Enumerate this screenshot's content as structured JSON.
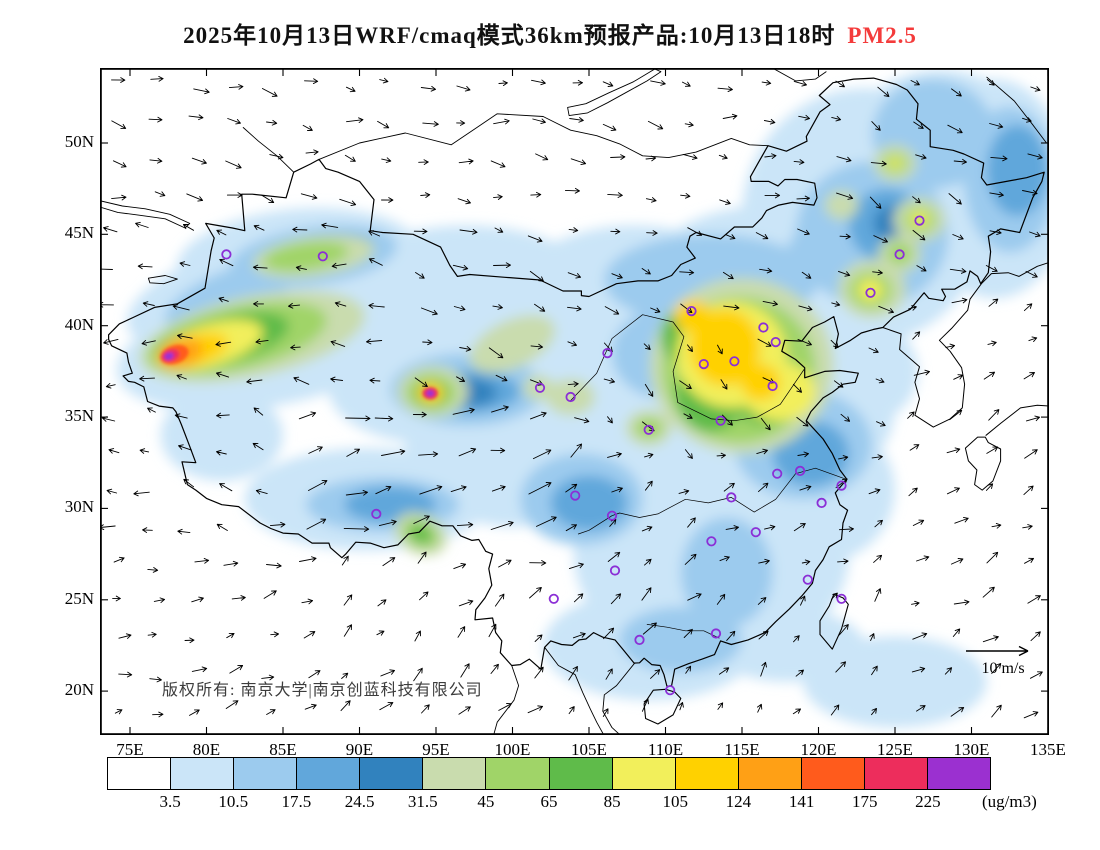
{
  "title": {
    "main": "2025年10月13日WRF/cmaq模式36km预报产品:10月13日18时",
    "highlight": "PM2.5",
    "highlight_color": "#f43b3b"
  },
  "map": {
    "copyright": "版权所有: 南京大学|南京创蓝科技有限公司",
    "wind_scale_label": "10 m/s"
  },
  "chart_data": {
    "type": "heatmap",
    "subtype": "filled-contour PM2.5 forecast map with wind vectors and station markers",
    "title": "2025年10月13日WRF/cmaq模式36km预报产品:10月13日18时 PM2.5",
    "variable": "PM2.5",
    "model": "WRF/cmaq",
    "grid_resolution": "36km",
    "forecast_date": "2025年10月13日",
    "valid_time": "10月13日18时",
    "wind_reference_speed": "10 m/s",
    "lon_range": [
      73.0,
      135.2
    ],
    "lat_range": [
      17.6,
      54.1
    ],
    "lon_ticks": [
      {
        "label": "75E",
        "lon": 75
      },
      {
        "label": "80E",
        "lon": 80
      },
      {
        "label": "85E",
        "lon": 85
      },
      {
        "label": "90E",
        "lon": 90
      },
      {
        "label": "95E",
        "lon": 95
      },
      {
        "label": "100E",
        "lon": 100
      },
      {
        "label": "105E",
        "lon": 105
      },
      {
        "label": "110E",
        "lon": 110
      },
      {
        "label": "115E",
        "lon": 115
      },
      {
        "label": "120E",
        "lon": 120
      },
      {
        "label": "125E",
        "lon": 125
      },
      {
        "label": "130E",
        "lon": 130
      },
      {
        "label": "135E",
        "lon": 135
      }
    ],
    "lat_ticks": [
      {
        "label": "50N",
        "lat": 50
      },
      {
        "label": "45N",
        "lat": 45
      },
      {
        "label": "40N",
        "lat": 40
      },
      {
        "label": "35N",
        "lat": 35
      },
      {
        "label": "30N",
        "lat": 30
      },
      {
        "label": "25N",
        "lat": 25
      },
      {
        "label": "20N",
        "lat": 20
      }
    ],
    "colorbar": {
      "unit": "(ug/m3)",
      "tick_labels": [
        "3.5",
        "10.5",
        "17.5",
        "24.5",
        "31.5",
        "45",
        "65",
        "85",
        "105",
        "124",
        "141",
        "175",
        "225"
      ],
      "colors": [
        "#ffffff",
        "#cbe5f8",
        "#9ccbee",
        "#61a7db",
        "#3182be",
        "#c9dcae",
        "#a0d468",
        "#5fbb4a",
        "#f2ef5b",
        "#ffd100",
        "#ffa015",
        "#ff5b1c",
        "#ed2d5c",
        "#9b30d0"
      ]
    },
    "station_marker_color": "#8b2fd6",
    "pm25_blobs": [
      [
        86,
        43.6,
        8,
        2.8,
        -5,
        1,
        0
      ],
      [
        80.5,
        41.6,
        6,
        2.2,
        -20,
        1,
        0
      ],
      [
        84,
        38.8,
        10,
        3.2,
        -10,
        1,
        0
      ],
      [
        97,
        41.5,
        9,
        4,
        0,
        1,
        0
      ],
      [
        108,
        40.5,
        9,
        5,
        0,
        1,
        0
      ],
      [
        116,
        41.5,
        8,
        5,
        0,
        1,
        0
      ],
      [
        123,
        46,
        8,
        7,
        0,
        1,
        0
      ],
      [
        128,
        50,
        6,
        4,
        0,
        1,
        0
      ],
      [
        117,
        35.5,
        8,
        5,
        0,
        1,
        0
      ],
      [
        108,
        32.5,
        8,
        5,
        0,
        1,
        0
      ],
      [
        100,
        33.5,
        7,
        4.5,
        0,
        1,
        0
      ],
      [
        113,
        27.5,
        9,
        6,
        0,
        1,
        0
      ],
      [
        120,
        31,
        5,
        4,
        0,
        1,
        0
      ],
      [
        95,
        36.5,
        7,
        3,
        0,
        1,
        0
      ],
      [
        90.5,
        30.5,
        8,
        2.8,
        0,
        1,
        0
      ],
      [
        109,
        22.5,
        7,
        3,
        0,
        1,
        0
      ],
      [
        131.5,
        47.5,
        5,
        6,
        0,
        1,
        0
      ],
      [
        122.5,
        37.5,
        4,
        3,
        0,
        1,
        0
      ],
      [
        81,
        34,
        4,
        2.5,
        0,
        1,
        0
      ],
      [
        125,
        20.5,
        6,
        2.5,
        0,
        1,
        0
      ],
      [
        118,
        22.5,
        5,
        2,
        0,
        1,
        0
      ],
      [
        87,
        43.8,
        5.5,
        1.6,
        -8,
        2,
        0
      ],
      [
        81.5,
        41.6,
        4.5,
        1.4,
        -22,
        2,
        0
      ],
      [
        113,
        42.5,
        7,
        2.5,
        0,
        2,
        0
      ],
      [
        123.5,
        45,
        5,
        4,
        0,
        2,
        0
      ],
      [
        127.5,
        50.5,
        4,
        3,
        0,
        2,
        0
      ],
      [
        119,
        33.5,
        4.5,
        3,
        0,
        2,
        0
      ],
      [
        104.5,
        30.5,
        4,
        2.5,
        0,
        2,
        0
      ],
      [
        97,
        36.5,
        5,
        2,
        0,
        2,
        0
      ],
      [
        91.5,
        30.2,
        5,
        1.5,
        0,
        2,
        0
      ],
      [
        111,
        22.8,
        4,
        1.8,
        0,
        2,
        0
      ],
      [
        114,
        26.5,
        3,
        3,
        0,
        2,
        0
      ],
      [
        132.5,
        48,
        3,
        4,
        0,
        2,
        0
      ],
      [
        121,
        44,
        3,
        2,
        0,
        2,
        0
      ],
      [
        110,
        38.5,
        3.5,
        2.5,
        0,
        2,
        0
      ],
      [
        87.5,
        44,
        3.5,
        1,
        -8,
        3,
        0
      ],
      [
        124.5,
        45.5,
        2.5,
        2,
        0,
        3,
        0
      ],
      [
        97,
        36.4,
        3.5,
        1.2,
        0,
        3,
        0
      ],
      [
        105,
        30.3,
        2.5,
        1.5,
        0,
        3,
        0
      ],
      [
        119.5,
        33,
        2.5,
        1.8,
        0,
        3,
        0
      ],
      [
        92,
        30.2,
        3,
        1,
        0,
        3,
        0
      ],
      [
        133,
        48.5,
        2,
        2.5,
        0,
        3,
        0
      ],
      [
        124.8,
        45.6,
        1.2,
        1,
        0,
        4,
        0
      ],
      [
        97,
        36.35,
        2,
        0.8,
        0,
        4,
        0
      ],
      [
        88,
        44,
        1.8,
        0.6,
        -8,
        4,
        0
      ],
      [
        83,
        39.4,
        7.5,
        2.2,
        -12,
        5,
        0
      ],
      [
        115,
        37.8,
        6,
        4.8,
        0,
        5,
        0
      ],
      [
        87,
        43.8,
        4,
        1.1,
        -8,
        5,
        0
      ],
      [
        123.5,
        42,
        2.2,
        1.6,
        0,
        5,
        0
      ],
      [
        126.6,
        45.8,
        1.7,
        1.2,
        0,
        5,
        0
      ],
      [
        125.3,
        43.9,
        1.4,
        1,
        0,
        5,
        0
      ],
      [
        125,
        48.9,
        1.4,
        1,
        0,
        5,
        0
      ],
      [
        94.8,
        36.4,
        2.3,
        1.4,
        0,
        5,
        0
      ],
      [
        94,
        28.6,
        1.8,
        1.1,
        25,
        5,
        0
      ],
      [
        100,
        39,
        3,
        1.3,
        -25,
        5,
        0
      ],
      [
        108.9,
        34.4,
        1.5,
        1,
        0,
        5,
        0
      ],
      [
        103.8,
        36.1,
        1.6,
        1,
        0,
        5,
        0
      ],
      [
        101.7,
        36.6,
        1,
        0.7,
        0,
        5,
        0
      ],
      [
        121.5,
        46.6,
        1.1,
        0.8,
        0,
        5,
        0
      ],
      [
        82,
        39.3,
        6,
        1.7,
        -13,
        6,
        0
      ],
      [
        114.8,
        37.6,
        5,
        4,
        0,
        6,
        0
      ],
      [
        86.5,
        43.8,
        2.8,
        0.75,
        -8,
        6,
        0
      ],
      [
        94.7,
        36.35,
        1.6,
        1,
        0,
        6,
        0
      ],
      [
        94,
        28.6,
        1.2,
        0.7,
        25,
        6,
        0
      ],
      [
        123.4,
        41.95,
        1.4,
        1,
        0,
        6,
        0
      ],
      [
        126.6,
        45.8,
        1,
        0.7,
        0,
        6,
        0
      ],
      [
        125,
        48.9,
        0.8,
        0.55,
        0,
        6,
        0
      ],
      [
        108.9,
        34.4,
        0.9,
        0.55,
        0,
        6,
        0
      ],
      [
        125.3,
        43.95,
        0.8,
        0.6,
        0,
        6,
        0
      ],
      [
        81,
        39.2,
        4.5,
        1.3,
        -14,
        7,
        0
      ],
      [
        112.9,
        36.2,
        2.2,
        2,
        0,
        7,
        0
      ],
      [
        116.6,
        36,
        2.2,
        1.4,
        0,
        7,
        0
      ],
      [
        110.9,
        39.4,
        1.2,
        1.4,
        0,
        7,
        0
      ],
      [
        94.65,
        36.3,
        1.1,
        0.65,
        0,
        7,
        0
      ],
      [
        94,
        28.6,
        0.75,
        0.45,
        25,
        7,
        0
      ],
      [
        80.2,
        38.95,
        3.6,
        1.15,
        -16,
        8,
        0
      ],
      [
        114.3,
        38.4,
        3.6,
        2.9,
        0,
        8,
        0
      ],
      [
        117.4,
        36.4,
        2.4,
        1.6,
        0,
        8,
        0
      ],
      [
        123.4,
        41.95,
        0.8,
        0.6,
        0,
        8,
        0
      ],
      [
        126.6,
        45.85,
        0.55,
        0.4,
        0,
        8,
        0
      ],
      [
        125,
        48.9,
        0.4,
        0.3,
        0,
        8,
        0
      ],
      [
        113.9,
        38.8,
        2.3,
        2.1,
        0,
        9,
        0
      ],
      [
        116.2,
        36.9,
        1.3,
        1,
        0,
        9,
        0
      ],
      [
        79.2,
        38.65,
        2.3,
        0.85,
        -17,
        9,
        0
      ],
      [
        111.8,
        40.5,
        1.2,
        0.9,
        0,
        9,
        0
      ],
      [
        94.65,
        36.32,
        0.85,
        0.55,
        0,
        9,
        0
      ],
      [
        78.3,
        38.5,
        1.5,
        0.75,
        -18,
        10,
        0
      ],
      [
        77.9,
        38.42,
        0.95,
        0.5,
        -18,
        11,
        1
      ],
      [
        77.65,
        38.37,
        0.6,
        0.34,
        -18,
        12,
        1
      ],
      [
        77.55,
        38.33,
        0.32,
        0.2,
        -18,
        13,
        1
      ],
      [
        94.62,
        36.3,
        0.5,
        0.34,
        0,
        12,
        1
      ],
      [
        94.62,
        36.3,
        0.26,
        0.18,
        0,
        13,
        1
      ]
    ],
    "wind_regions": [
      [
        73,
        95,
        46,
        54.2,
        12,
        20,
        15
      ],
      [
        73,
        92,
        36,
        46,
        188,
        22,
        15
      ],
      [
        73,
        84,
        28,
        36,
        198,
        25,
        14
      ],
      [
        84,
        102,
        27,
        36,
        -12,
        18,
        22
      ],
      [
        92,
        106,
        36,
        46,
        15,
        22,
        15
      ],
      [
        95,
        120,
        46,
        54.2,
        8,
        20,
        14
      ],
      [
        106,
        124,
        40,
        46,
        20,
        20,
        14
      ],
      [
        120,
        135.2,
        42,
        54.2,
        25,
        22,
        15
      ],
      [
        106,
        122,
        33,
        40,
        40,
        22,
        13
      ],
      [
        102,
        112,
        22,
        33,
        -35,
        20,
        15
      ],
      [
        112,
        124,
        27,
        33,
        -20,
        22,
        13
      ],
      [
        105,
        125,
        17,
        27,
        -55,
        22,
        13
      ],
      [
        124,
        135.2,
        17,
        42,
        -30,
        22,
        14
      ],
      [
        88,
        105,
        17,
        27,
        -40,
        22,
        14
      ],
      [
        73,
        88,
        17,
        28,
        -15,
        22,
        13
      ]
    ],
    "stations": [
      [
        81.3,
        43.9
      ],
      [
        87.6,
        43.8
      ],
      [
        91.1,
        29.7
      ],
      [
        101.8,
        36.6
      ],
      [
        103.8,
        36.1
      ],
      [
        106.2,
        38.5
      ],
      [
        111.7,
        40.8
      ],
      [
        116.4,
        39.9
      ],
      [
        117.2,
        39.1
      ],
      [
        114.5,
        38.05
      ],
      [
        112.5,
        37.9
      ],
      [
        117,
        36.7
      ],
      [
        113.6,
        34.8
      ],
      [
        108.9,
        34.3
      ],
      [
        104.1,
        30.7
      ],
      [
        106.5,
        29.6
      ],
      [
        106.7,
        26.6
      ],
      [
        102.7,
        25.05
      ],
      [
        108.3,
        22.8
      ],
      [
        110.3,
        20.05
      ],
      [
        113.3,
        23.15
      ],
      [
        113,
        28.2
      ],
      [
        114.3,
        30.6
      ],
      [
        115.9,
        28.7
      ],
      [
        117.3,
        31.9
      ],
      [
        118.8,
        32.05
      ],
      [
        121.5,
        31.25
      ],
      [
        120.2,
        30.3
      ],
      [
        119.3,
        26.1
      ],
      [
        121.5,
        25.05
      ],
      [
        123.4,
        41.8
      ],
      [
        125.3,
        43.9
      ],
      [
        126.6,
        45.75
      ]
    ]
  }
}
